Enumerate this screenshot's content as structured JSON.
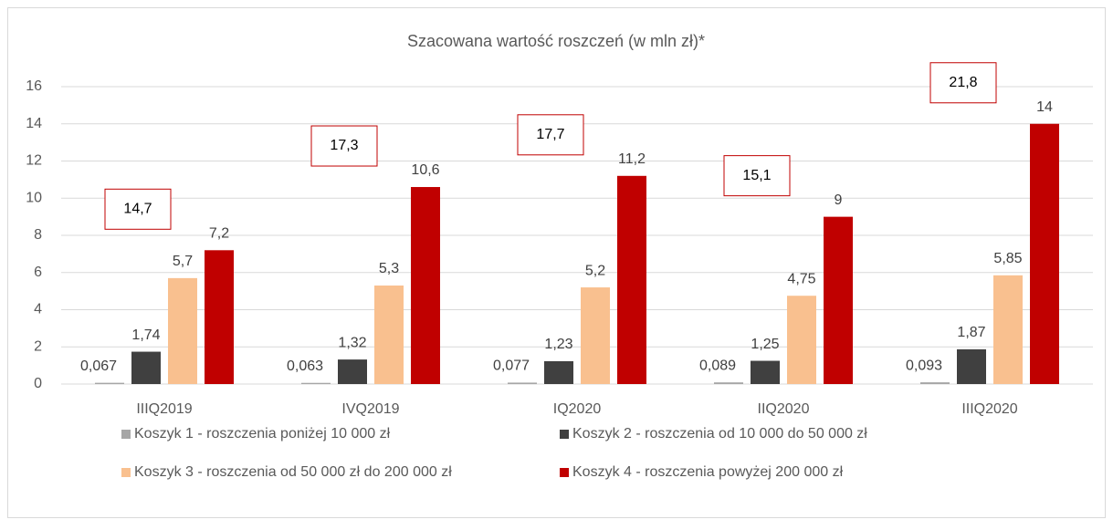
{
  "chart_data": {
    "type": "bar",
    "title": "Szacowana wartość roszczeń (w mln zł)*",
    "categories": [
      "IIIQ2019",
      "IVQ2019",
      "IQ2020",
      "IIQ2020",
      "IIIQ2020"
    ],
    "series": [
      {
        "name": "Koszyk 1 - roszczenia poniżej 10 000 zł",
        "color": "#a6a6a6",
        "values": [
          0.067,
          0.063,
          0.077,
          0.089,
          0.093
        ],
        "value_labels": [
          "0,067",
          "0,063",
          "0,077",
          "0,089",
          "0,093"
        ]
      },
      {
        "name": "Koszyk 2 - roszczenia od 10 000 do 50 000 zł",
        "color": "#404040",
        "values": [
          1.74,
          1.32,
          1.23,
          1.25,
          1.87
        ],
        "value_labels": [
          "1,74",
          "1,32",
          "1,23",
          "1,25",
          "1,87"
        ]
      },
      {
        "name": "Koszyk 3 - roszczenia od 50 000 zł do 200 000 zł",
        "color": "#f9c08f",
        "values": [
          5.7,
          5.3,
          5.2,
          4.75,
          5.85
        ],
        "value_labels": [
          "5,7",
          "5,3",
          "5,2",
          "4,75",
          "5,85"
        ]
      },
      {
        "name": "Koszyk 4 - roszczenia powyżej 200 000 zł",
        "color": "#c00000",
        "values": [
          7.2,
          10.6,
          11.2,
          9,
          14
        ],
        "value_labels": [
          "7,2",
          "10,6",
          "11,2",
          "9",
          "14"
        ]
      }
    ],
    "totals": [
      14.7,
      17.3,
      17.7,
      15.1,
      21.8
    ],
    "total_labels": [
      "14,7",
      "17,3",
      "17,7",
      "15,1",
      "21,8"
    ],
    "ylim": [
      0,
      16
    ],
    "yticks": [
      0,
      2,
      4,
      6,
      8,
      10,
      12,
      14,
      16
    ],
    "grid": true
  }
}
